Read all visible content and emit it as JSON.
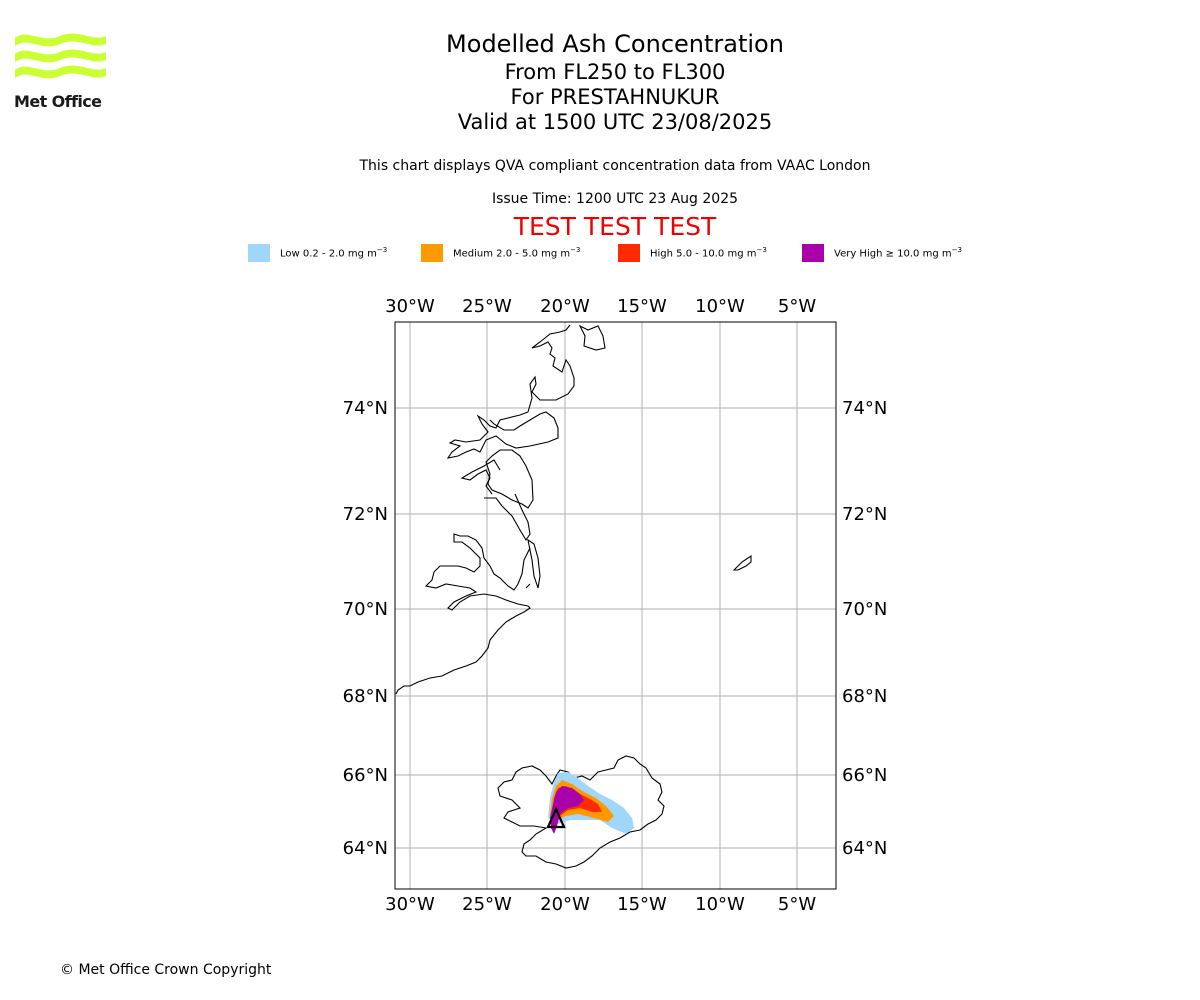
{
  "logo": {
    "text": "Met Office",
    "brand_color": "#ccff33"
  },
  "title": {
    "main": "Modelled Ash Concentration",
    "levels": "From FL250 to FL300",
    "volcano": "For PRESTAHNUKUR",
    "valid": "Valid at 1500 UTC 23/08/2025"
  },
  "subtitle": "This chart displays QVA compliant concentration data from VAAC London",
  "issue_time": "Issue Time: 1200 UTC 23 Aug 2025",
  "test_banner": "TEST TEST TEST",
  "legend": [
    {
      "label": "Low 0.2 - 2.0 mg m",
      "color": "#a0d6fa"
    },
    {
      "label": "Medium 2.0 - 5.0 mg m",
      "color": "#ff9900"
    },
    {
      "label": "High 5.0 - 10.0 mg m",
      "color": "#ff2a00"
    },
    {
      "label": "Very High ≥ 10.0 mg m",
      "color": "#aa00aa"
    }
  ],
  "legend_unit_exponent": "−3",
  "map": {
    "longitude_labels": [
      "30°W",
      "25°W",
      "20°W",
      "15°W",
      "10°W",
      "5°W"
    ],
    "latitude_labels": [
      "74°N",
      "72°N",
      "70°N",
      "68°N",
      "66°N",
      "64°N"
    ],
    "gridlines": true,
    "volcano_marker": "triangle"
  },
  "copyright": "© Met Office Crown Copyright"
}
